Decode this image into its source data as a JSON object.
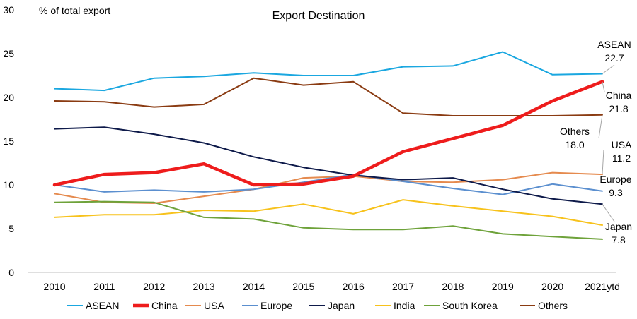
{
  "chart_data": {
    "type": "line",
    "title": "Export Destination",
    "ylabel": "% of total export",
    "xlabel": "",
    "ylim": [
      0,
      30
    ],
    "yticks": [
      "0",
      "5",
      "10",
      "15",
      "20",
      "25",
      "30"
    ],
    "categories": [
      "2010",
      "2011",
      "2012",
      "2013",
      "2014",
      "2015",
      "2016",
      "2017",
      "2018",
      "2019",
      "2020",
      "2021ytd"
    ],
    "grid": false,
    "legend_position": "bottom",
    "series": [
      {
        "name": "ASEAN",
        "color": "#1aa7e0",
        "emphasis": false,
        "values": [
          21.0,
          20.8,
          22.2,
          22.4,
          22.8,
          22.5,
          22.5,
          23.5,
          23.6,
          25.2,
          22.6,
          22.7
        ]
      },
      {
        "name": "China",
        "color": "#ee1c1c",
        "emphasis": true,
        "values": [
          10.0,
          11.2,
          11.4,
          12.4,
          10.0,
          10.1,
          11.0,
          13.8,
          15.3,
          16.8,
          19.6,
          21.8
        ]
      },
      {
        "name": "USA",
        "color": "#e58a4e",
        "emphasis": false,
        "values": [
          9.0,
          8.0,
          7.9,
          8.7,
          9.5,
          10.8,
          11.0,
          10.4,
          10.3,
          10.6,
          11.4,
          11.2
        ]
      },
      {
        "name": "Europe",
        "color": "#5b8fcf",
        "emphasis": false,
        "values": [
          10.0,
          9.2,
          9.4,
          9.2,
          9.5,
          10.3,
          11.2,
          10.4,
          9.6,
          8.9,
          10.1,
          9.3
        ]
      },
      {
        "name": "Japan",
        "color": "#0e1a4a",
        "emphasis": false,
        "values": [
          16.4,
          16.6,
          15.8,
          14.8,
          13.2,
          12.0,
          11.1,
          10.6,
          10.8,
          9.5,
          8.4,
          7.8
        ]
      },
      {
        "name": "India",
        "color": "#f7c21c",
        "emphasis": false,
        "values": [
          6.3,
          6.6,
          6.6,
          7.1,
          7.0,
          7.8,
          6.7,
          8.3,
          7.6,
          7.0,
          6.4,
          5.4
        ]
      },
      {
        "name": "South Korea",
        "color": "#6ea23a",
        "emphasis": false,
        "values": [
          8.0,
          8.1,
          8.0,
          6.3,
          6.1,
          5.1,
          4.9,
          4.9,
          5.3,
          4.4,
          4.1,
          3.8
        ]
      },
      {
        "name": "Others",
        "color": "#8a3b12",
        "emphasis": false,
        "values": [
          19.6,
          19.5,
          18.9,
          19.2,
          22.2,
          21.4,
          21.8,
          18.2,
          17.9,
          17.9,
          17.9,
          18.0
        ]
      }
    ],
    "annotations": [
      {
        "series": "ASEAN",
        "label": "ASEAN",
        "value": "22.7"
      },
      {
        "series": "China",
        "label": "China",
        "value": "21.8"
      },
      {
        "series": "Others",
        "label": "Others",
        "value": "18.0"
      },
      {
        "series": "USA",
        "label": "USA",
        "value": "11.2"
      },
      {
        "series": "Europe",
        "label": "Europe",
        "value": "9.3"
      },
      {
        "series": "Japan",
        "label": "Japan",
        "value": "7.8"
      }
    ]
  }
}
